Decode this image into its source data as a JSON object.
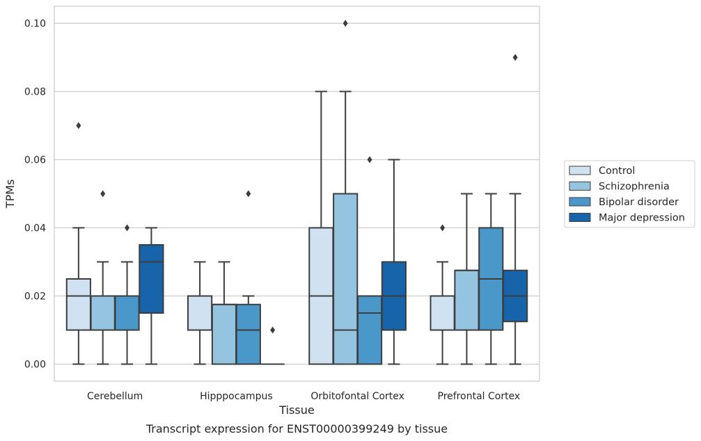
{
  "chart_data": {
    "type": "box",
    "caption": "Transcript expression for ENST00000399249 by tissue",
    "xlabel": "Tissue",
    "ylabel": "TPMs",
    "ylim": [
      -0.005,
      0.105
    ],
    "yticks": [
      "0.00",
      "0.02",
      "0.04",
      "0.06",
      "0.08",
      "0.10"
    ],
    "ytick_values": [
      0,
      0.02,
      0.04,
      0.06,
      0.08,
      0.1
    ],
    "grid": "horizontal",
    "legend_position": "right",
    "categories": [
      "Cerebellum",
      "Hipppocampus",
      "Orbitofontal Cortex",
      "Prefrontal Cortex"
    ],
    "series": [
      {
        "name": "Control",
        "color": "#d0e1f2",
        "boxes": [
          {
            "min": 0,
            "q1": 0.01,
            "median": 0.02,
            "q3": 0.025,
            "max": 0.04,
            "outliers": [
              0.07
            ]
          },
          {
            "min": 0,
            "q1": 0.01,
            "median": 0.02,
            "q3": 0.02,
            "max": 0.03,
            "outliers": []
          },
          {
            "min": 0,
            "q1": 0,
            "median": 0.02,
            "q3": 0.04,
            "max": 0.08,
            "outliers": []
          },
          {
            "min": 0,
            "q1": 0.01,
            "median": 0.02,
            "q3": 0.02,
            "max": 0.03,
            "outliers": [
              0.04
            ]
          }
        ]
      },
      {
        "name": "Schizophrenia",
        "color": "#94c4df",
        "boxes": [
          {
            "min": 0,
            "q1": 0.01,
            "median": 0.02,
            "q3": 0.02,
            "max": 0.03,
            "outliers": [
              0.05
            ]
          },
          {
            "min": 0,
            "q1": 0,
            "median": 0.0175,
            "q3": 0.0175,
            "max": 0.03,
            "outliers": []
          },
          {
            "min": 0,
            "q1": 0,
            "median": 0.01,
            "q3": 0.05,
            "max": 0.08,
            "outliers": [
              0.1
            ]
          },
          {
            "min": 0,
            "q1": 0.01,
            "median": 0.0275,
            "q3": 0.0275,
            "max": 0.05,
            "outliers": []
          }
        ]
      },
      {
        "name": "Bipolar disorder",
        "color": "#4a98c9",
        "boxes": [
          {
            "min": 0,
            "q1": 0.01,
            "median": 0.02,
            "q3": 0.02,
            "max": 0.03,
            "outliers": [
              0.04
            ]
          },
          {
            "min": 0,
            "q1": 0,
            "median": 0.01,
            "q3": 0.0175,
            "max": 0.02,
            "outliers": [
              0.05
            ]
          },
          {
            "min": 0,
            "q1": 0,
            "median": 0.015,
            "q3": 0.02,
            "max": 0.02,
            "outliers": [
              0.06
            ]
          },
          {
            "min": 0,
            "q1": 0.01,
            "median": 0.025,
            "q3": 0.04,
            "max": 0.05,
            "outliers": []
          }
        ]
      },
      {
        "name": "Major depression",
        "color": "#1764ab",
        "boxes": [
          {
            "min": 0,
            "q1": 0.015,
            "median": 0.03,
            "q3": 0.035,
            "max": 0.04,
            "outliers": []
          },
          {
            "min": 0,
            "q1": 0,
            "median": 0,
            "q3": 0,
            "max": 0,
            "outliers": [
              0.01
            ]
          },
          {
            "min": 0,
            "q1": 0.01,
            "median": 0.02,
            "q3": 0.03,
            "max": 0.06,
            "outliers": []
          },
          {
            "min": 0,
            "q1": 0.0125,
            "median": 0.02,
            "q3": 0.0275,
            "max": 0.05,
            "outliers": [
              0.09
            ]
          }
        ]
      }
    ]
  }
}
